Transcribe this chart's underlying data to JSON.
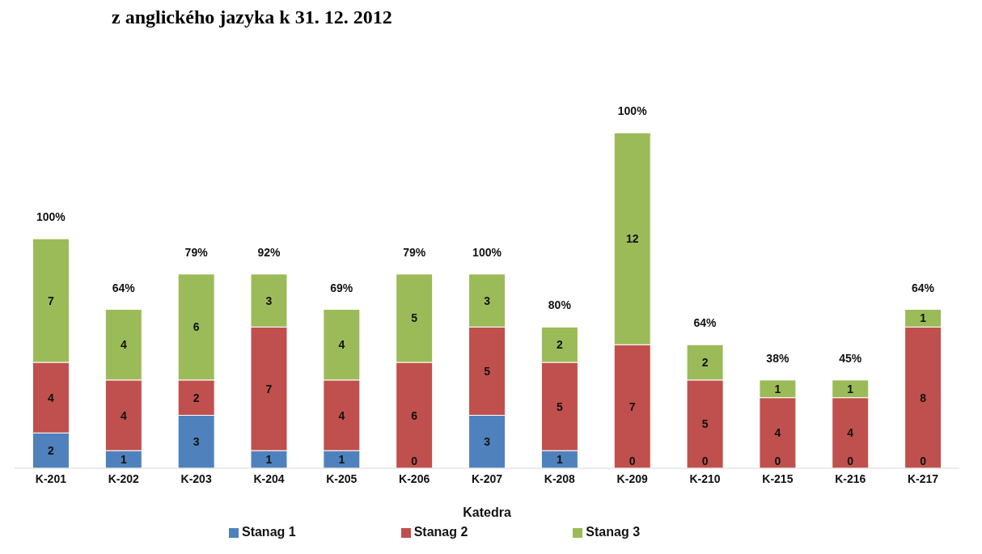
{
  "chart_data": {
    "type": "bar",
    "title": "z anglického jazyka k 31. 12. 2012",
    "xlabel": "Katedra",
    "categories": [
      "K-201",
      "K-202",
      "K-203",
      "K-204",
      "K-205",
      "K-206",
      "K-207",
      "K-208",
      "K-209",
      "K-210",
      "K-215",
      "K-216",
      "K-217"
    ],
    "stacked": true,
    "legend": "bottom",
    "grid": false,
    "series": [
      {
        "name": "Stanag 1",
        "color": "#4f81bd",
        "values": [
          2,
          1,
          3,
          1,
          1,
          0,
          3,
          1,
          0,
          0,
          0,
          0,
          0
        ],
        "value_labels": [
          "2",
          "1",
          "3",
          "1",
          "1",
          null,
          "3",
          "1",
          null,
          null,
          null,
          null,
          null
        ]
      },
      {
        "name": "Stanag 2",
        "color": "#c0504d",
        "values": [
          4,
          4,
          2,
          7,
          4,
          6,
          5,
          5,
          7,
          5,
          4,
          4,
          8
        ],
        "value_labels": [
          "4",
          "4",
          "2",
          "7",
          "4",
          "6",
          "5",
          "5",
          "7",
          "5",
          "4",
          "4",
          "8"
        ]
      },
      {
        "name": "Stanag 3",
        "color": "#9bbb59",
        "values": [
          7,
          4,
          6,
          3,
          4,
          5,
          3,
          2,
          12,
          2,
          1,
          1,
          1
        ],
        "value_labels": [
          "7",
          "4",
          "6",
          "3",
          "4",
          "5",
          "3",
          "2",
          "12",
          "2",
          "1",
          "1",
          "1"
        ]
      }
    ],
    "annotations": [
      {
        "text": "100%",
        "x": "K-201",
        "y": 13
      },
      {
        "text": "64%",
        "x": "K-202",
        "y": 9
      },
      {
        "text": "79%",
        "x": "K-203",
        "y": 11
      },
      {
        "text": "92%",
        "x": "K-204",
        "y": 11
      },
      {
        "text": "69%",
        "x": "K-205",
        "y": 9
      },
      {
        "text": "79%",
        "x": "K-206",
        "y": 11
      },
      {
        "text": "100%",
        "x": "K-207",
        "y": 11
      },
      {
        "text": "80%",
        "x": "K-208",
        "y": 8
      },
      {
        "text": "100%",
        "x": "K-209",
        "y": 19
      },
      {
        "text": "64%",
        "x": "K-210",
        "y": 7
      },
      {
        "text": "38%",
        "x": "K-215",
        "y": 5
      },
      {
        "text": "45%",
        "x": "K-216",
        "y": 5
      },
      {
        "text": "64%",
        "x": "K-217",
        "y": 9
      },
      {
        "text": "0",
        "x": "K-206",
        "y": 0
      },
      {
        "text": "0",
        "x": "K-209",
        "y": 0
      },
      {
        "text": "0",
        "x": "K-210",
        "y": 0
      },
      {
        "text": "0",
        "x": "K-215",
        "y": 0
      },
      {
        "text": "0",
        "x": "K-216",
        "y": 0
      },
      {
        "text": "0",
        "x": "K-217",
        "y": 0
      }
    ]
  }
}
